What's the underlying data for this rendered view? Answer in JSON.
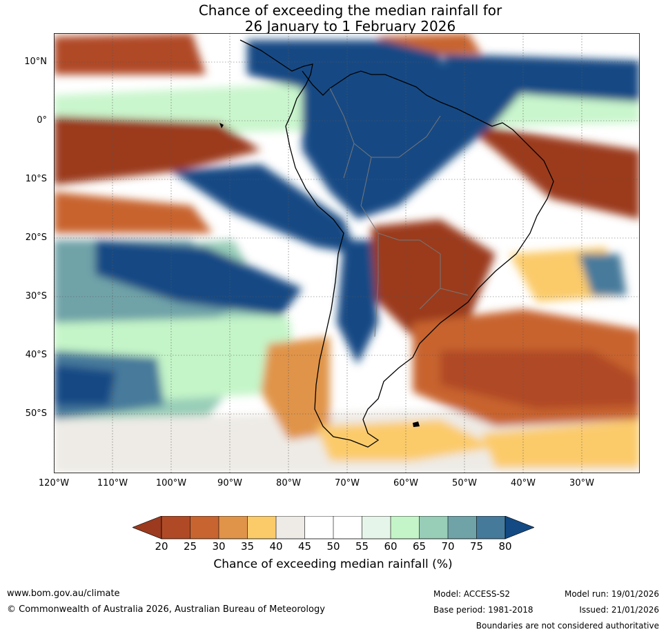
{
  "title": {
    "line1": "Chance of exceeding the median rainfall for",
    "line2": "26 January to 1 February 2026"
  },
  "map": {
    "lat_labels": [
      "10°N",
      "0°",
      "10°S",
      "20°S",
      "30°S",
      "40°S",
      "50°S"
    ],
    "lon_labels": [
      "120°W",
      "110°W",
      "100°W",
      "90°W",
      "80°W",
      "70°W",
      "60°W",
      "50°W",
      "40°W",
      "30°W"
    ]
  },
  "legend": {
    "ticks": [
      "20",
      "25",
      "30",
      "35",
      "40",
      "45",
      "50",
      "55",
      "60",
      "65",
      "70",
      "75",
      "80"
    ],
    "colors": [
      "#9b3a1f",
      "#b04a26",
      "#c8642f",
      "#e0944a",
      "#fbcb6a",
      "#eeebe6",
      "#ffffff",
      "#ffffff",
      "#e6f5e9",
      "#c4f5c8",
      "#98cdb8",
      "#6fa3a8",
      "#467a9b",
      "#134a84"
    ],
    "label": "Chance of exceeding median rainfall (%)"
  },
  "footer": {
    "url": "www.bom.gov.au/climate",
    "copyright": "© Commonwealth of Australia 2026, Australian Bureau of Meteorology",
    "model": "Model: ACCESS-S2",
    "model_run": "Model run: 19/01/2026",
    "base_period": "Base period: 1981-2018",
    "issued": "Issued: 21/01/2026",
    "disclaimer": "Boundaries are not considered authoritative"
  }
}
